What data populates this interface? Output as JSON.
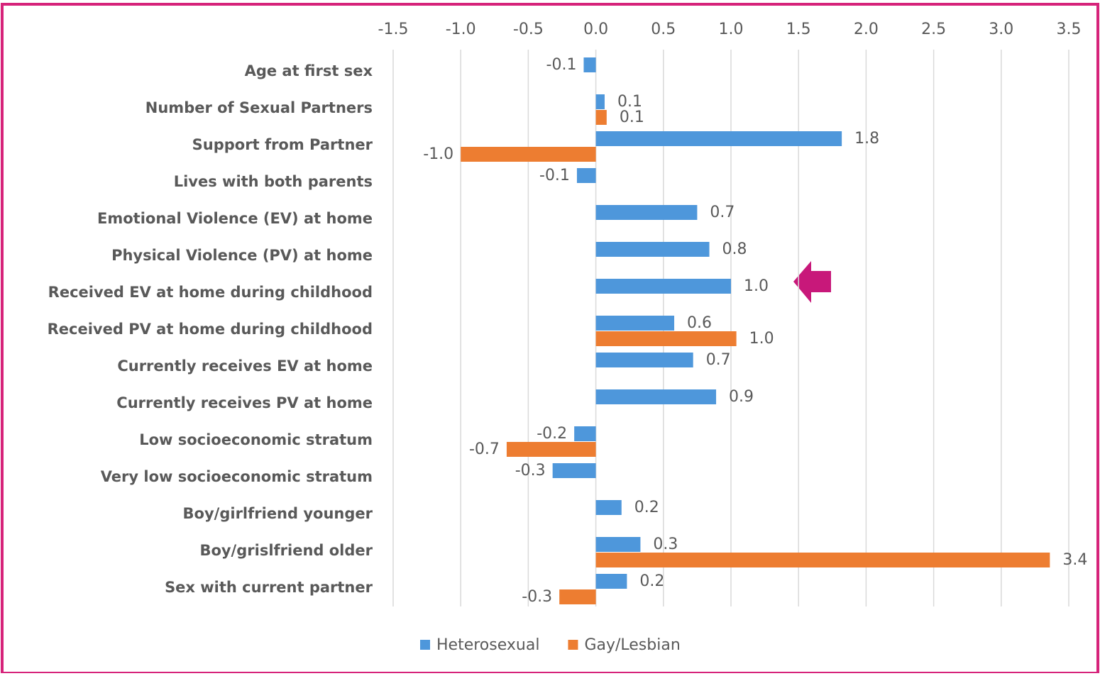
{
  "chart_data": {
    "type": "hbar",
    "categories": [
      "Age at first sex",
      "Number of Sexual Partners",
      "Support from Partner",
      "Lives with both parents",
      "Emotional Violence (EV) at home",
      "Physical Violence (PV) at home",
      "Received EV at home during childhood",
      "Received PV at home during childhood",
      "Currently receives EV at home",
      "Currently receives PV at home",
      "Low socioeconomic stratum",
      "Very low socioeconomic stratum",
      "Boy/girlfriend younger",
      "Boy/grislfriend older",
      "Sex with current partner"
    ],
    "series": [
      {
        "name": "Heterosexual",
        "color": "#4e97db",
        "values": [
          -0.09,
          0.065,
          1.82,
          -0.14,
          0.75,
          0.84,
          1.0,
          0.58,
          0.72,
          0.89,
          -0.16,
          -0.32,
          0.19,
          0.33,
          0.23
        ],
        "value_labels": [
          "-0.1",
          "0.1",
          "1.8",
          "-0.1",
          "0.7",
          "0.8",
          "1.0",
          "0.6",
          "0.7",
          "0.9",
          "-0.2",
          "-0.3",
          "0.2",
          "0.3",
          "0.2"
        ]
      },
      {
        "name": "Gay/Lesbian",
        "color": "#ed7d31",
        "values": [
          null,
          0.08,
          -1.0,
          null,
          null,
          null,
          null,
          1.04,
          null,
          null,
          -0.66,
          null,
          null,
          3.36,
          -0.27
        ],
        "value_labels": [
          null,
          "0.1",
          "-1.0",
          null,
          null,
          null,
          null,
          "1.0",
          null,
          null,
          "-0.7",
          null,
          null,
          "3.4",
          "-0.3"
        ]
      }
    ],
    "xlim": [
      -1.5,
      3.5
    ],
    "xticks": [
      {
        "value": -1.5,
        "label": "-1.5"
      },
      {
        "value": -1,
        "label": "-1.0"
      },
      {
        "value": -0.5,
        "label": "-0.5"
      },
      {
        "value": 0,
        "label": "0.0"
      },
      {
        "value": 0.5,
        "label": "0.5"
      },
      {
        "value": 1,
        "label": "1.0"
      },
      {
        "value": 1.5,
        "label": "1.5"
      },
      {
        "value": 2,
        "label": "2.0"
      },
      {
        "value": 2.5,
        "label": "2.5"
      },
      {
        "value": 3,
        "label": "3.0"
      },
      {
        "value": 3.5,
        "label": "3.5"
      }
    ],
    "grid": true,
    "legend": "bottom"
  }
}
